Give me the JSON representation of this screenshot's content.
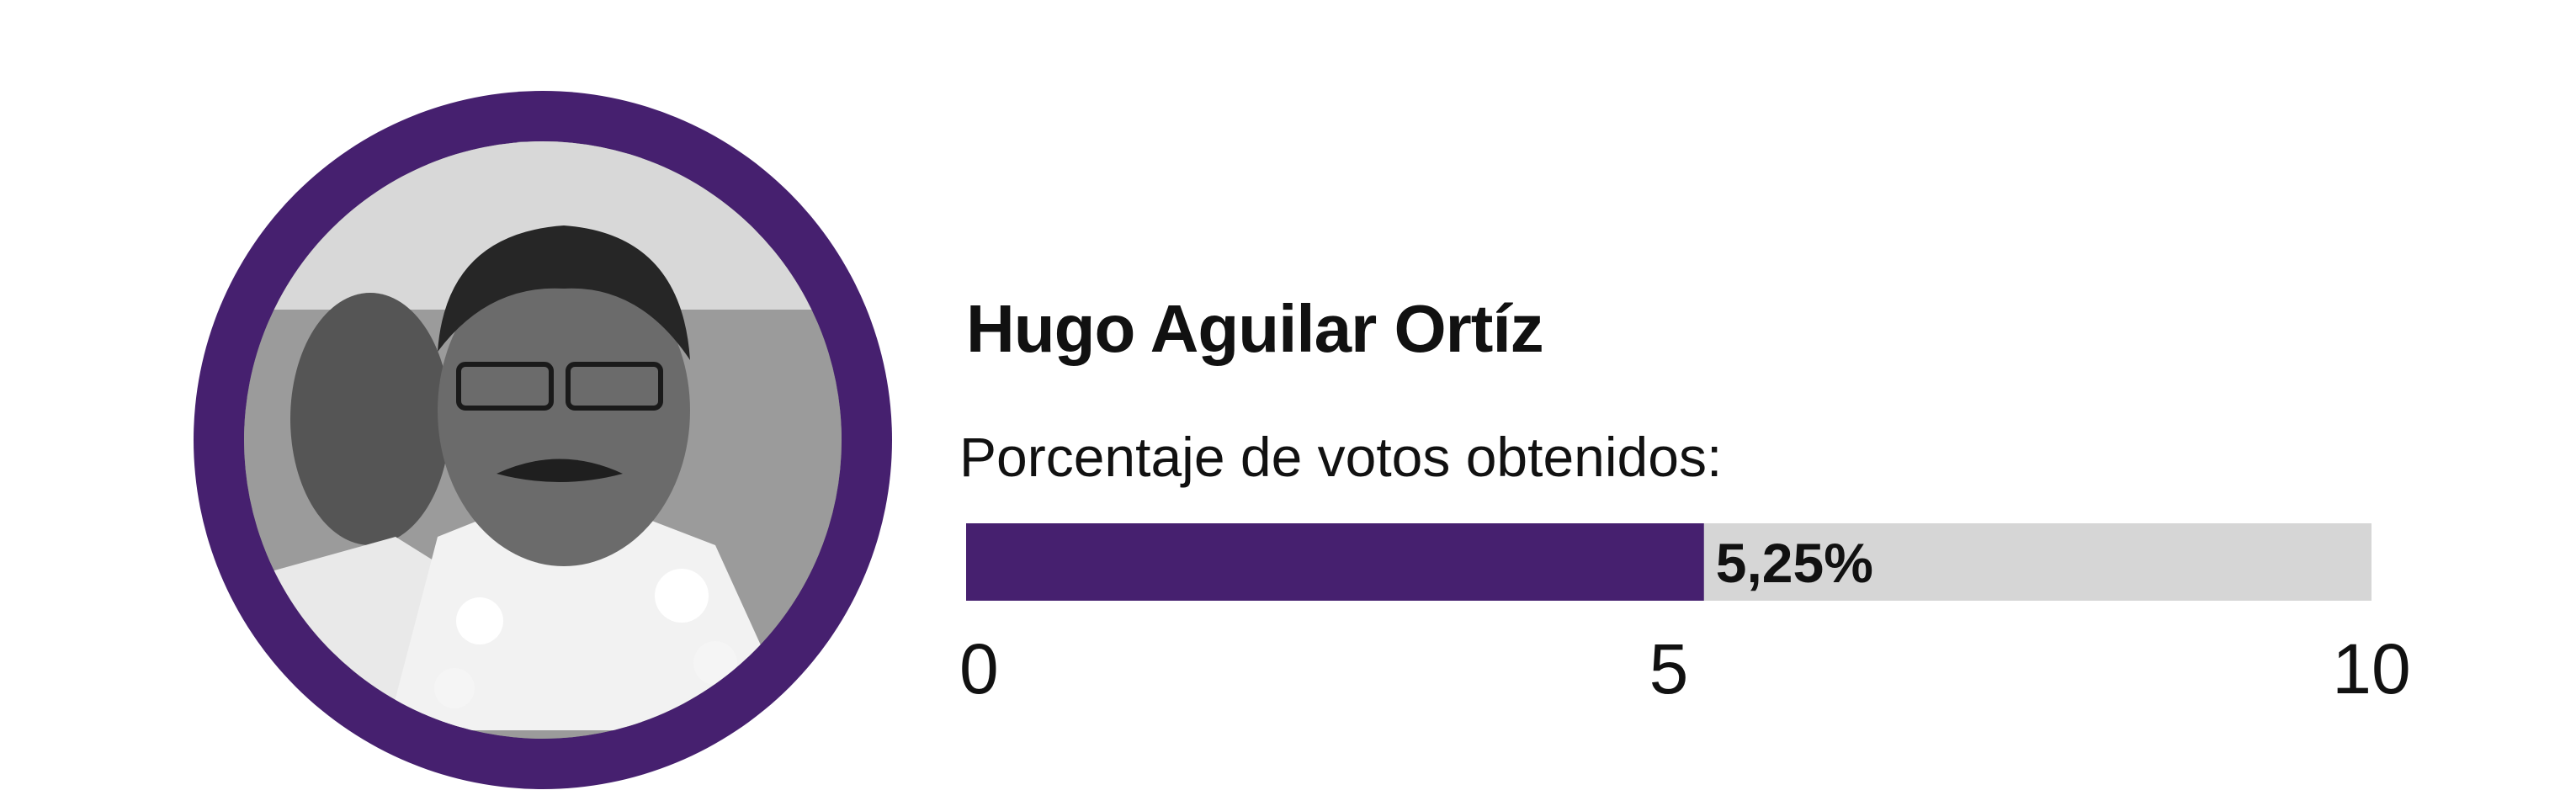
{
  "candidate": {
    "name": "Hugo Aguilar Ortíz",
    "subtitle": "Porcentaje de votos obtenidos:",
    "photo_icon": "candidate-portrait-photo"
  },
  "colors": {
    "accent": "#46206f",
    "track": "#d6d6d6",
    "text": "#111111"
  },
  "chart_data": {
    "type": "bar",
    "categories": [
      "Hugo Aguilar Ortíz"
    ],
    "values": [
      5.25
    ],
    "value_labels": [
      "5,25%"
    ],
    "xlim": [
      0,
      10
    ],
    "xticks": [
      0,
      5,
      10
    ],
    "xtick_labels": [
      "0",
      "5",
      "10"
    ],
    "orientation": "horizontal",
    "grid": false
  }
}
